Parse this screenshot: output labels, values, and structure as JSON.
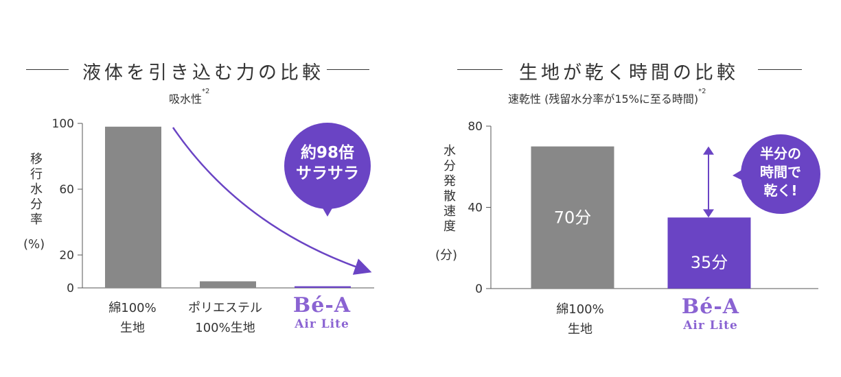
{
  "colors": {
    "text": "#333333",
    "gray_bar": "#888888",
    "accent": "#6a44c4",
    "brand": "#8a63d2",
    "axis": "#555555"
  },
  "left": {
    "title": "液体を引き込む力の比較",
    "subtitle": "吸水性",
    "subtitle_note": "*2",
    "ylabel": "移行水分率",
    "yunit": "(%)",
    "bubble": "約98倍\nサラサラ",
    "brand": {
      "main": "Bé-A",
      "sub": "Air Lite"
    }
  },
  "right": {
    "title": "生地が乾く時間の比較",
    "subtitle": "速乾性 (残留水分率が15%に至る時間)",
    "subtitle_note": "*2",
    "ylabel": "水分発散速度",
    "yunit": "(分)",
    "bubble": "半分の\n時間で\n乾く!",
    "brand": {
      "main": "Bé-A",
      "sub": "Air Lite"
    }
  },
  "chart_data": [
    {
      "type": "bar",
      "title": "液体を引き込む力の比較",
      "subtitle": "吸水性*2",
      "ylabel": "移行水分率 (%)",
      "categories": [
        "綿100%\n生地",
        "ポリエステル\n100%生地",
        "Bé-A Air Lite"
      ],
      "values": [
        98,
        4,
        1
      ],
      "ylim": [
        0,
        100
      ],
      "yticks": [
        0,
        20,
        60,
        100
      ],
      "annotation": "約98倍サラサラ"
    },
    {
      "type": "bar",
      "title": "生地が乾く時間の比較",
      "subtitle": "速乾性 (残留水分率が15%に至る時間)*2",
      "ylabel": "水分発散速度 (分)",
      "categories": [
        "綿100%\n生地",
        "Bé-A Air Lite"
      ],
      "values": [
        70,
        35
      ],
      "value_labels": [
        "70分",
        "35分"
      ],
      "ylim": [
        0,
        80
      ],
      "yticks": [
        0,
        40,
        80
      ],
      "annotation": "半分の時間で乾く!"
    }
  ]
}
